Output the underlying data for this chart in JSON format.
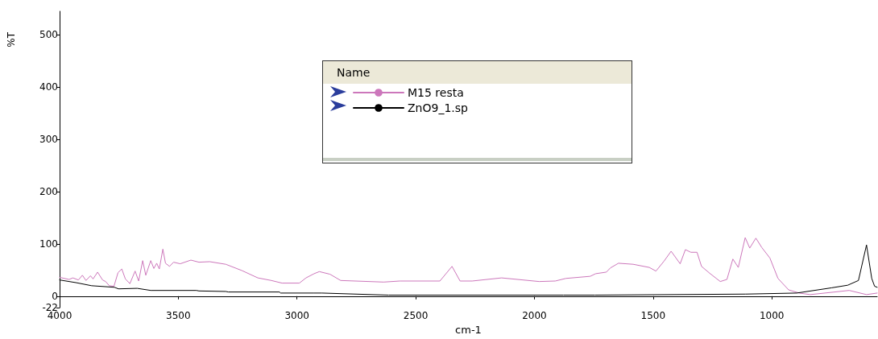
{
  "chart_data": {
    "type": "line",
    "xlabel": "cm-1",
    "ylabel": "%T",
    "legend_title": "Name",
    "legend": "top",
    "grid": false,
    "marker": "none",
    "line_style": "solid",
    "xlim": [
      4000,
      556
    ],
    "xticks": [
      4000,
      3500,
      3000,
      2500,
      2000,
      1500,
      1000
    ],
    "ylim": [
      -22,
      545
    ],
    "yticks": [
      -22,
      0,
      100,
      200,
      300,
      400,
      500
    ],
    "series": [
      {
        "name": "M15 resta",
        "color": "#cc77bb",
        "x": [
          4000,
          3960,
          3944,
          3921,
          3904,
          3889,
          3870,
          3859,
          3840,
          3819,
          3806,
          3791,
          3771,
          3754,
          3738,
          3723,
          3704,
          3682,
          3667,
          3650,
          3637,
          3616,
          3603,
          3591,
          3580,
          3565,
          3554,
          3537,
          3520,
          3492,
          3447,
          3413,
          3368,
          3300,
          3232,
          3165,
          3108,
          3063,
          2990,
          2962,
          2928,
          2906,
          2861,
          2816,
          2635,
          2567,
          2398,
          2347,
          2313,
          2262,
          2138,
          1980,
          1912,
          1867,
          1765,
          1742,
          1697,
          1680,
          1646,
          1584,
          1516,
          1488,
          1454,
          1424,
          1386,
          1364,
          1341,
          1315,
          1296,
          1262,
          1217,
          1189,
          1164,
          1141,
          1112,
          1093,
          1067,
          1042,
          1008,
          974,
          929,
          884,
          838,
          674,
          601,
          556
        ],
        "values": [
          36,
          32,
          35,
          31,
          40,
          30,
          39,
          33,
          46,
          31,
          28,
          20,
          19,
          45,
          52,
          33,
          24,
          48,
          29,
          68,
          40,
          68,
          53,
          63,
          52,
          90,
          63,
          57,
          65,
          62,
          69,
          65,
          66,
          61,
          49,
          35,
          30,
          25,
          25,
          35,
          43,
          47,
          42,
          30,
          27,
          29,
          29,
          57,
          29,
          29,
          35,
          28,
          29,
          34,
          38,
          43,
          46,
          54,
          63,
          61,
          55,
          48,
          67,
          86,
          62,
          89,
          84,
          84,
          57,
          44,
          28,
          32,
          71,
          55,
          112,
          92,
          111,
          93,
          73,
          34,
          12,
          6,
          3,
          11,
          3,
          6
        ]
      },
      {
        "name": "ZnO9_1.sp",
        "color": "#000000",
        "x": [
          4000,
          3932,
          3865,
          3769,
          3752,
          3673,
          3616,
          3424,
          3413,
          3300,
          3289,
          3074,
          3069,
          2928,
          2895,
          2614,
          1878,
          1745,
          1110,
          895,
          748,
          680,
          635,
          601,
          579,
          567,
          556
        ],
        "values": [
          31,
          26,
          20,
          17,
          14,
          15,
          11,
          11,
          10,
          9,
          8,
          8,
          6,
          6,
          6,
          2,
          2,
          2,
          4,
          6,
          16,
          21,
          30,
          98,
          34,
          19,
          17
        ]
      }
    ]
  }
}
